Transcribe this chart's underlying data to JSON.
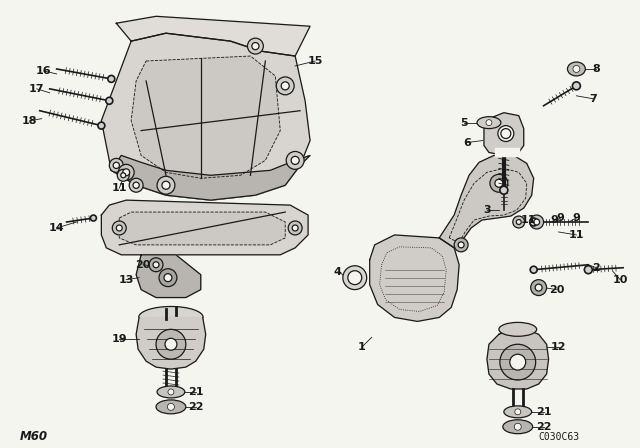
{
  "bg_color": "#f5f5f0",
  "line_color": "#1a1a1a",
  "fig_width": 6.4,
  "fig_height": 4.48,
  "dpi": 100,
  "bottom_left_label": "M60",
  "bottom_right_label": "C030C63"
}
